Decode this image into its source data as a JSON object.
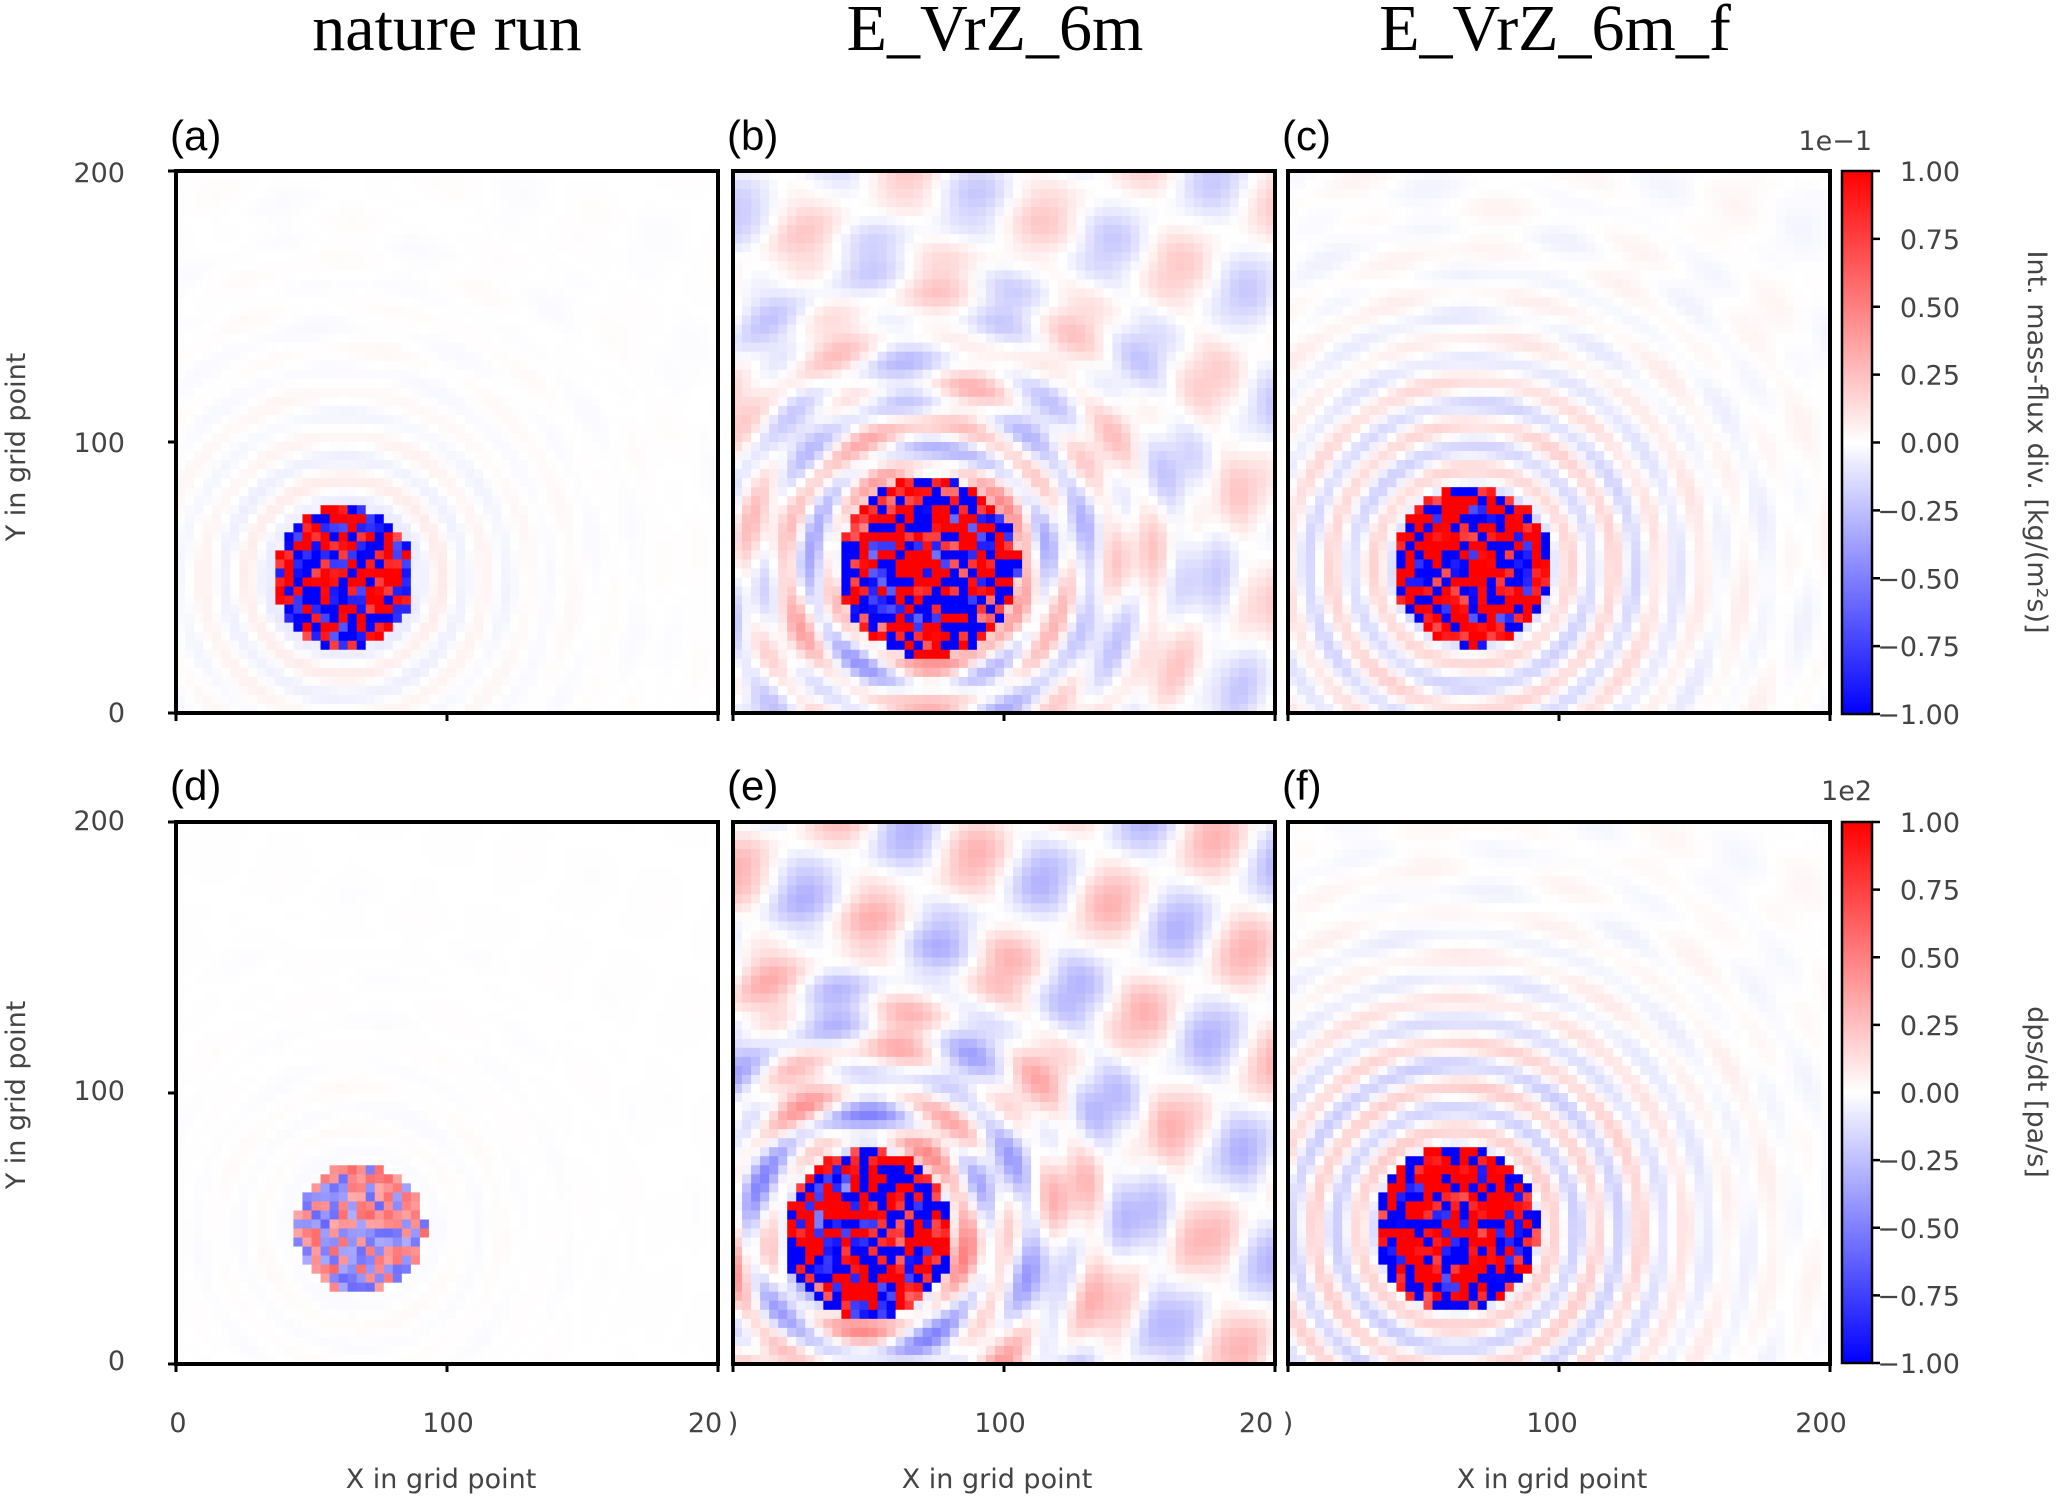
{
  "column_titles": [
    "nature run",
    "E_VrZ_6m",
    "E_VrZ_6m_f"
  ],
  "colors": {
    "positive": "#ff0000",
    "negative": "#0000ff",
    "neutral": "#ffffff"
  },
  "chart_data": {
    "type": "heatmap",
    "colormap": "bwr",
    "xlabel": "X in grid point",
    "ylabel": "Y in grid point",
    "xlim": [
      0,
      200
    ],
    "ylim": [
      0,
      200
    ],
    "xticks": [
      "0",
      "100",
      "20",
      ")",
      "100",
      "20",
      ")",
      "100",
      "200"
    ],
    "yticks": [
      "0",
      "100",
      "200"
    ],
    "panels": [
      {
        "label": "(a)",
        "experiment": "nature run",
        "row": 0,
        "feature": "storm",
        "center": [
          62,
          50
        ],
        "amp": 0.15,
        "noise": 0.02,
        "ring_radius": 35
      },
      {
        "label": "(b)",
        "experiment": "E_VrZ_6m",
        "row": 0,
        "feature": "storm",
        "center": [
          72,
          54
        ],
        "amp": 0.5,
        "noise": 0.35,
        "ring_radius": 40
      },
      {
        "label": "(c)",
        "experiment": "E_VrZ_6m_f",
        "row": 0,
        "feature": "storm",
        "center": [
          68,
          54
        ],
        "amp": 0.3,
        "noise": 0.06,
        "ring_radius": 60
      },
      {
        "label": "(d)",
        "experiment": "nature run",
        "row": 1,
        "feature": "storm",
        "center": [
          68,
          50
        ],
        "amp": 0.03,
        "noise": 0.01,
        "ring_radius": 45
      },
      {
        "label": "(e)",
        "experiment": "E_VrZ_6m",
        "row": 1,
        "feature": "storm",
        "center": [
          50,
          48
        ],
        "amp": 0.4,
        "noise": 0.5,
        "ring_radius": 45
      },
      {
        "label": "(f)",
        "experiment": "E_VrZ_6m_f",
        "row": 1,
        "feature": "storm",
        "center": [
          62,
          50
        ],
        "amp": 0.35,
        "noise": 0.05,
        "ring_radius": 65
      }
    ],
    "colorbars": [
      {
        "row": 0,
        "scale": "1e−1",
        "label": "Int. mass-flux div. [kg/(m²s)]",
        "ticks": [
          "1.00",
          "0.75",
          "0.50",
          "0.25",
          "0.00",
          "−0.25",
          "−0.50",
          "−0.75",
          "−1.00"
        ],
        "range": [
          -1,
          1
        ]
      },
      {
        "row": 1,
        "scale": "1e2",
        "label": "dps/dt [pa/s]",
        "ticks": [
          "1.00",
          "0.75",
          "0.50",
          "0.25",
          "0.00",
          "−0.25",
          "−0.50",
          "−0.75",
          "−1.00"
        ],
        "range": [
          -1,
          1
        ]
      }
    ]
  }
}
